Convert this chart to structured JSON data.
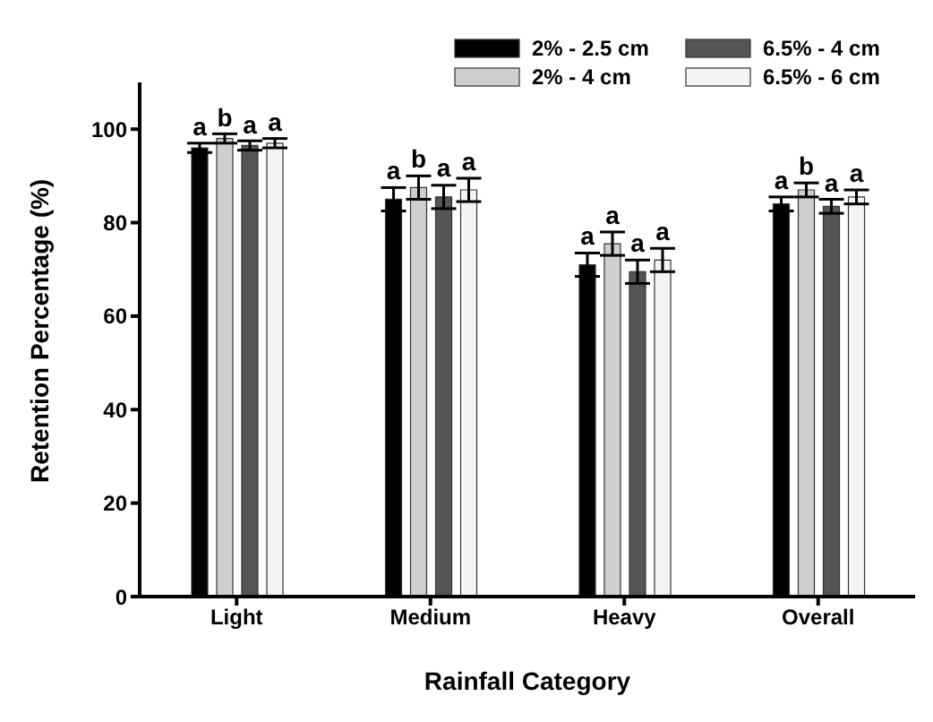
{
  "chart_data": {
    "type": "bar",
    "xlabel": "Rainfall Category",
    "ylabel": "Retention Percentage (%)",
    "categories": [
      "Light",
      "Medium",
      "Heavy",
      "Overall"
    ],
    "series": [
      {
        "name": "2% - 2.5 cm",
        "color": "#000000",
        "values": [
          96,
          85,
          71,
          84
        ],
        "errors": [
          1,
          2.5,
          2.5,
          1.5
        ],
        "value_labels": [
          "a",
          "a",
          "a",
          "a"
        ]
      },
      {
        "name": "2% - 4 cm",
        "color": "#cfcfcf",
        "values": [
          98,
          87.5,
          75.5,
          87
        ],
        "errors": [
          1,
          2.5,
          2.5,
          1.5
        ],
        "value_labels": [
          "b",
          "b",
          "a",
          "b"
        ]
      },
      {
        "name": "6.5% - 4 cm",
        "color": "#555555",
        "values": [
          96.5,
          85.5,
          69.5,
          83.5
        ],
        "errors": [
          1,
          2.5,
          2.5,
          1.5
        ],
        "value_labels": [
          "a",
          "a",
          "a",
          "a"
        ]
      },
      {
        "name": "6.5% - 6 cm",
        "color": "#f5f5f5",
        "values": [
          97,
          87,
          72,
          85.5
        ],
        "errors": [
          1,
          2.5,
          2.5,
          1.5
        ],
        "value_labels": [
          "a",
          "a",
          "a",
          "a"
        ]
      }
    ],
    "ylim": [
      0,
      110
    ],
    "yticks": [
      0,
      20,
      40,
      60,
      80,
      100
    ],
    "grid": false,
    "legend": "top right"
  }
}
